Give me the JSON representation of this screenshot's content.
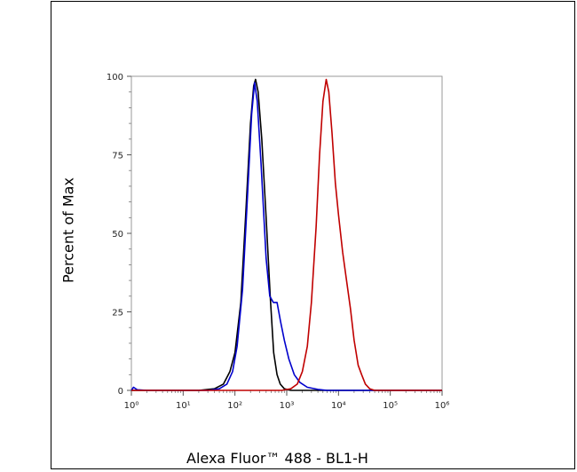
{
  "chart_data": {
    "type": "line",
    "xlabel": "Alexa Fluor™ 488 - BL1-H",
    "ylabel": "Percent of Max",
    "x_scale": "log",
    "xlim": [
      1,
      1000000
    ],
    "ylim": [
      0,
      100
    ],
    "x_tick_labels": [
      "10⁰",
      "10¹",
      "10²",
      "10³",
      "10⁴",
      "10⁵",
      "10⁶"
    ],
    "x_tick_values": [
      1,
      10,
      100,
      1000,
      10000,
      100000,
      1000000
    ],
    "y_tick_labels": [
      "0",
      "25",
      "50",
      "75",
      "100"
    ],
    "y_tick_values": [
      0,
      25,
      50,
      75,
      100
    ],
    "grid": false,
    "series": [
      {
        "color": "#000000",
        "points": [
          [
            1,
            0
          ],
          [
            20,
            0
          ],
          [
            40,
            0.5
          ],
          [
            60,
            2
          ],
          [
            80,
            6
          ],
          [
            100,
            12
          ],
          [
            130,
            28
          ],
          [
            160,
            55
          ],
          [
            200,
            85
          ],
          [
            230,
            97
          ],
          [
            250,
            99
          ],
          [
            280,
            95
          ],
          [
            330,
            80
          ],
          [
            400,
            55
          ],
          [
            480,
            30
          ],
          [
            560,
            12
          ],
          [
            650,
            5
          ],
          [
            750,
            2
          ],
          [
            900,
            0.5
          ],
          [
            1200,
            0
          ],
          [
            1000000,
            0
          ]
        ]
      },
      {
        "color": "#0000cc",
        "points": [
          [
            1,
            0
          ],
          [
            1.1,
            1
          ],
          [
            1.3,
            0.2
          ],
          [
            2,
            0
          ],
          [
            30,
            0
          ],
          [
            50,
            0.5
          ],
          [
            70,
            2
          ],
          [
            90,
            6
          ],
          [
            110,
            14
          ],
          [
            140,
            32
          ],
          [
            170,
            58
          ],
          [
            210,
            88
          ],
          [
            240,
            98
          ],
          [
            270,
            92
          ],
          [
            320,
            72
          ],
          [
            400,
            42
          ],
          [
            470,
            30
          ],
          [
            550,
            28
          ],
          [
            650,
            28
          ],
          [
            760,
            22
          ],
          [
            900,
            16
          ],
          [
            1100,
            10
          ],
          [
            1400,
            5
          ],
          [
            1800,
            2.5
          ],
          [
            2500,
            1
          ],
          [
            4000,
            0.3
          ],
          [
            6000,
            0
          ],
          [
            1000000,
            0
          ]
        ]
      },
      {
        "color": "#c00000",
        "points": [
          [
            1,
            0
          ],
          [
            800,
            0
          ],
          [
            1200,
            0.5
          ],
          [
            1600,
            2
          ],
          [
            2000,
            6
          ],
          [
            2500,
            14
          ],
          [
            3000,
            28
          ],
          [
            3700,
            52
          ],
          [
            4300,
            75
          ],
          [
            5000,
            92
          ],
          [
            5800,
            99
          ],
          [
            6500,
            95
          ],
          [
            7500,
            82
          ],
          [
            8700,
            66
          ],
          [
            10000,
            56
          ],
          [
            12000,
            44
          ],
          [
            14000,
            36
          ],
          [
            17000,
            26
          ],
          [
            20000,
            16
          ],
          [
            24000,
            8
          ],
          [
            28000,
            5
          ],
          [
            33000,
            2
          ],
          [
            40000,
            0.5
          ],
          [
            50000,
            0
          ],
          [
            1000000,
            0
          ]
        ]
      }
    ]
  }
}
